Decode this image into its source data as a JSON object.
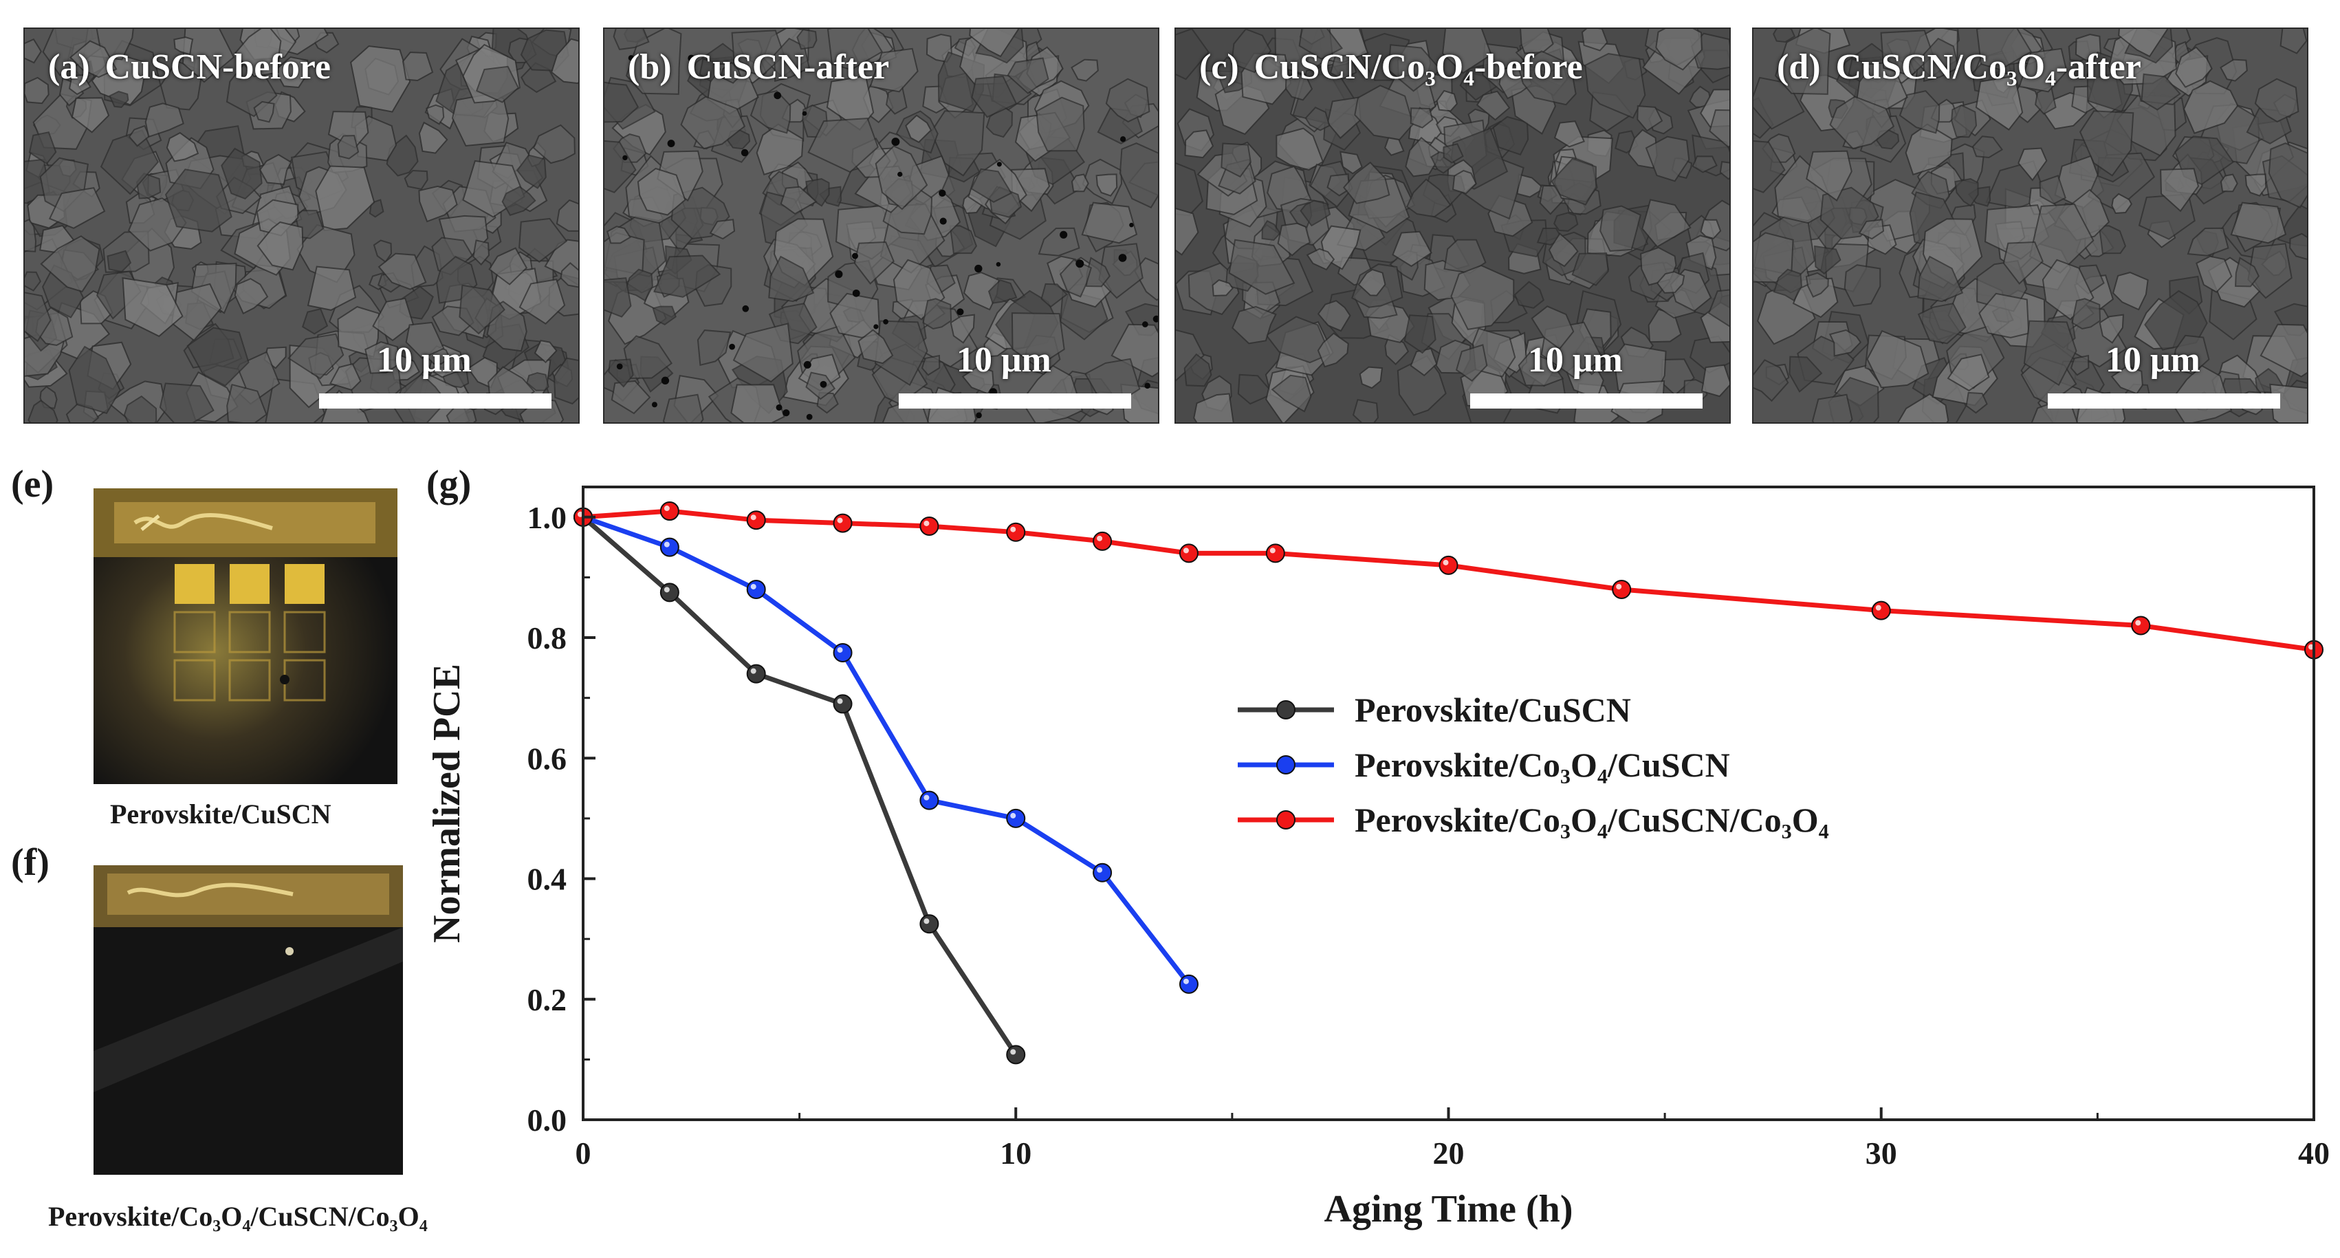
{
  "sem_panels": [
    {
      "letter": "(a)",
      "title": "CuSCN-before",
      "scale": "10 μm"
    },
    {
      "letter": "(b)",
      "title": "CuSCN-after",
      "scale": "10 μm"
    },
    {
      "letter": "(c)",
      "title": "CuSCN/Co₃O₄-before",
      "scale": "10 μm"
    },
    {
      "letter": "(d)",
      "title": "CuSCN/Co₃O₄-after",
      "scale": "10 μm"
    }
  ],
  "photos": [
    {
      "letter": "(e)",
      "caption": "Perovskite/CuSCN"
    },
    {
      "letter": "(f)",
      "caption": "Perovskite/Co₃O₄/CuSCN/Co₃O₄"
    }
  ],
  "chart_panel_letter": "(g)",
  "colors": {
    "black_series": "#3a3a3a",
    "blue_series": "#1a3ff0",
    "red_series": "#f01818"
  },
  "chart_data": {
    "type": "line",
    "title": "",
    "xlabel": "Aging Time (h)",
    "ylabel": "Normalized PCE",
    "xlim": [
      0,
      40
    ],
    "ylim": [
      0,
      1.05
    ],
    "xticks": [
      0,
      10,
      20,
      30,
      40
    ],
    "yticks": [
      "0.0",
      "0.2",
      "0.4",
      "0.6",
      "0.8",
      "1.0"
    ],
    "legend_position": "center-right",
    "series": [
      {
        "name": "Perovskite/CuSCN",
        "color": "#3a3a3a",
        "x": [
          0,
          2,
          4,
          6,
          8,
          10
        ],
        "y": [
          1.0,
          0.875,
          0.74,
          0.69,
          0.325,
          0.108
        ]
      },
      {
        "name": "Perovskite/Co₃O₄/CuSCN",
        "color": "#1a3ff0",
        "x": [
          0,
          2,
          4,
          6,
          8,
          10,
          12,
          14
        ],
        "y": [
          1.0,
          0.95,
          0.88,
          0.775,
          0.53,
          0.5,
          0.41,
          0.225
        ]
      },
      {
        "name": "Perovskite/Co₃O₄/CuSCN/Co₃O₄",
        "color": "#f01818",
        "x": [
          0,
          2,
          4,
          6,
          8,
          10,
          12,
          14,
          16,
          20,
          24,
          30,
          36,
          40
        ],
        "y": [
          1.0,
          1.01,
          0.995,
          0.99,
          0.985,
          0.975,
          0.96,
          0.94,
          0.94,
          0.92,
          0.88,
          0.845,
          0.82,
          0.78
        ]
      }
    ]
  }
}
